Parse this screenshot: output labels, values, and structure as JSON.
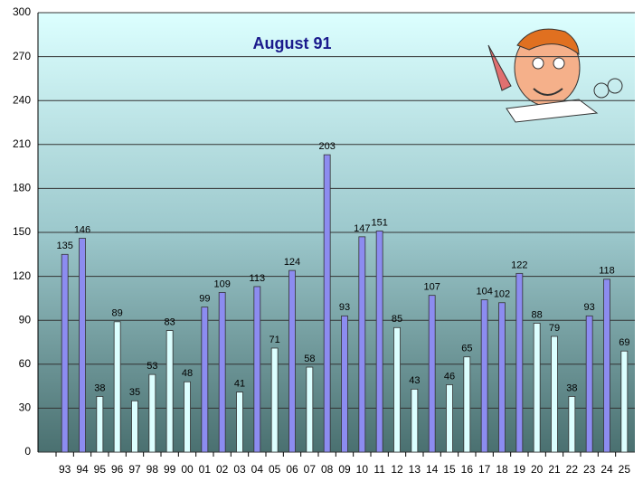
{
  "chart_data": {
    "type": "bar",
    "title": "August 91",
    "categories": [
      "93",
      "94",
      "95",
      "96",
      "97",
      "98",
      "99",
      "00",
      "01",
      "02",
      "03",
      "04",
      "05",
      "06",
      "07",
      "08",
      "09",
      "10",
      "11",
      "12",
      "13",
      "14",
      "15",
      "16",
      "17",
      "18",
      "19",
      "20",
      "21",
      "22",
      "23",
      "24",
      "25"
    ],
    "values": [
      135,
      146,
      38,
      89,
      35,
      53,
      83,
      48,
      99,
      109,
      41,
      113,
      71,
      124,
      58,
      203,
      93,
      147,
      151,
      85,
      43,
      107,
      46,
      65,
      104,
      102,
      122,
      88,
      79,
      38,
      93,
      118,
      69
    ],
    "colors": [
      "#8c8cf0",
      "#8c8cf0",
      "#dcffff",
      "#dcffff",
      "#dcffff",
      "#dcffff",
      "#dcffff",
      "#dcffff",
      "#8c8cf0",
      "#8c8cf0",
      "#dcffff",
      "#8c8cf0",
      "#dcffff",
      "#8c8cf0",
      "#dcffff",
      "#8c8cf0",
      "#8c8cf0",
      "#8c8cf0",
      "#8c8cf0",
      "#dcffff",
      "#dcffff",
      "#8c8cf0",
      "#dcffff",
      "#dcffff",
      "#8c8cf0",
      "#8c8cf0",
      "#8c8cf0",
      "#dcffff",
      "#dcffff",
      "#dcffff",
      "#8c8cf0",
      "#8c8cf0",
      "#dcffff"
    ],
    "ylim": [
      0,
      300
    ],
    "yticks": [
      0,
      30,
      60,
      90,
      120,
      150,
      180,
      210,
      240,
      270,
      300
    ],
    "grid": true
  }
}
